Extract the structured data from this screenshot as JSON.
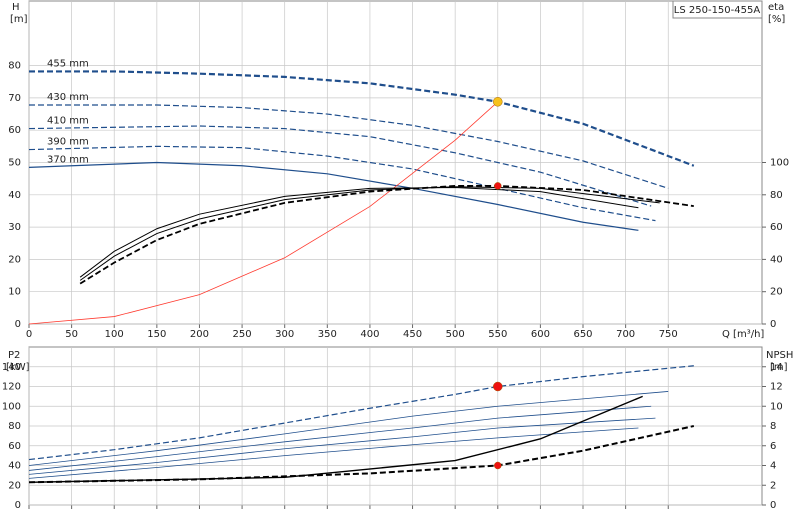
{
  "chart_data": [
    {
      "type": "line",
      "title": "LS 250-150-455A",
      "y_label": "H",
      "y_unit": "[m]",
      "y2_label": "eta",
      "y2_unit": "[%]",
      "x_label": "Q [m³/h]",
      "xlim": [
        0,
        860
      ],
      "xticks": [
        0,
        50,
        100,
        150,
        200,
        250,
        300,
        350,
        400,
        450,
        500,
        550,
        600,
        650,
        700,
        750
      ],
      "x_tick_labels": true,
      "ylim": [
        0,
        100
      ],
      "yticks": [
        0,
        10,
        20,
        30,
        40,
        50,
        60,
        70,
        80
      ],
      "y2lim": [
        0,
        200
      ],
      "y2ticks": [
        0,
        20,
        40,
        60,
        80,
        100
      ],
      "grid": true,
      "series": [
        {
          "name": "455 mm",
          "color": "#1f4e8c",
          "width": 2.2,
          "dash": true,
          "x": [
            0,
            100,
            200,
            300,
            400,
            500,
            550,
            650,
            700,
            780
          ],
          "values": [
            78.2,
            78.2,
            77.5,
            76.5,
            74.5,
            71,
            68.8,
            62,
            57,
            49
          ]
        },
        {
          "name": "430 mm",
          "color": "#1f4e8c",
          "width": 1.2,
          "dash": true,
          "x": [
            0,
            150,
            250,
            350,
            450,
            550,
            650,
            750
          ],
          "values": [
            67.8,
            67.8,
            67,
            65,
            61.5,
            56.5,
            50.5,
            42
          ]
        },
        {
          "name": "410 mm",
          "color": "#1f4e8c",
          "width": 1.2,
          "dash": true,
          "x": [
            0,
            200,
            300,
            400,
            500,
            600,
            730
          ],
          "values": [
            60.5,
            61.3,
            60.5,
            58,
            53,
            47,
            36.5
          ]
        },
        {
          "name": "390 mm",
          "color": "#1f4e8c",
          "width": 1.2,
          "dash": true,
          "x": [
            0,
            150,
            250,
            350,
            450,
            550,
            650,
            735
          ],
          "values": [
            54,
            55,
            54.6,
            52,
            48,
            42,
            36,
            32
          ]
        },
        {
          "name": "370 mm",
          "color": "#1f4e8c",
          "width": 1.2,
          "dash": false,
          "x": [
            0,
            150,
            250,
            350,
            450,
            550,
            650,
            715
          ],
          "values": [
            48.5,
            50,
            49,
            46.5,
            42,
            37,
            31.5,
            29
          ]
        },
        {
          "color": "#ff3b30",
          "width": 0.8,
          "dash": false,
          "x": [
            0,
            100,
            200,
            300,
            400,
            500,
            550
          ],
          "values": [
            0,
            2.3,
            9.1,
            20.5,
            36.4,
            56.9,
            68.8
          ]
        },
        {
          "color": "#000000",
          "width": 1.8,
          "dash": true,
          "axis": "y2",
          "x": [
            60,
            100,
            150,
            200,
            300,
            400,
            500,
            550,
            650,
            780
          ],
          "values": [
            25,
            38,
            52,
            62,
            75,
            82,
            85.5,
            85.5,
            83,
            73
          ]
        },
        {
          "color": "#000000",
          "width": 1,
          "dash": false,
          "axis": "y2",
          "x": [
            60,
            100,
            150,
            200,
            300,
            400,
            500,
            600,
            740
          ],
          "values": [
            27,
            42,
            56,
            65,
            77,
            83,
            85,
            84,
            75
          ]
        },
        {
          "color": "#000000",
          "width": 1,
          "dash": false,
          "axis": "y2",
          "x": [
            60,
            100,
            150,
            200,
            300,
            400,
            500,
            600,
            715
          ],
          "values": [
            29,
            45,
            59,
            68,
            79,
            84,
            84.5,
            82,
            72
          ]
        }
      ],
      "points": [
        {
          "x": 550,
          "y": 68.8,
          "color": "#f7c21c"
        },
        {
          "x": 550,
          "y": 85.5,
          "color": "#ee1111",
          "axis": "y2"
        }
      ]
    },
    {
      "type": "line",
      "y_label": "P2",
      "y_unit": "[kW]",
      "y2_label": "NPSH",
      "y2_unit": "[m]",
      "xlim": [
        0,
        860
      ],
      "xticks": [
        0,
        50,
        100,
        150,
        200,
        250,
        300,
        350,
        400,
        450,
        500,
        550,
        600,
        650,
        700,
        750
      ],
      "x_tick_labels": false,
      "ylim": [
        0,
        160
      ],
      "yticks": [
        0,
        20,
        40,
        60,
        80,
        100,
        120,
        140
      ],
      "y2lim": [
        0,
        16
      ],
      "y2ticks": [
        0,
        2,
        4,
        6,
        8,
        10,
        12,
        14
      ],
      "grid": true,
      "series": [
        {
          "color": "#1f4e8c",
          "width": 1.2,
          "dash": true,
          "x": [
            0,
            100,
            200,
            300,
            400,
            500,
            550,
            650,
            780
          ],
          "values": [
            46,
            56,
            68,
            83,
            98,
            112,
            120,
            130,
            141
          ]
        },
        {
          "color": "#1f4e8c",
          "width": 0.8,
          "dash": false,
          "x": [
            0,
            150,
            300,
            450,
            550,
            750
          ],
          "values": [
            40,
            55,
            72,
            90,
            100,
            115
          ]
        },
        {
          "color": "#1f4e8c",
          "width": 0.8,
          "dash": false,
          "x": [
            0,
            150,
            300,
            450,
            550,
            730
          ],
          "values": [
            35,
            49,
            64,
            78,
            88,
            100
          ]
        },
        {
          "color": "#1f4e8c",
          "width": 0.8,
          "dash": false,
          "x": [
            0,
            150,
            300,
            450,
            550,
            735
          ],
          "values": [
            31,
            43,
            57,
            69,
            78,
            88
          ]
        },
        {
          "color": "#1f4e8c",
          "width": 0.8,
          "dash": false,
          "x": [
            0,
            150,
            300,
            450,
            550,
            715
          ],
          "values": [
            27,
            38,
            50,
            61,
            68,
            78
          ]
        },
        {
          "color": "#000000",
          "width": 2,
          "dash": true,
          "axis": "y2",
          "x": [
            0,
            200,
            400,
            550,
            650,
            780
          ],
          "values": [
            2.3,
            2.6,
            3.2,
            4,
            5.5,
            8
          ]
        },
        {
          "color": "#000000",
          "width": 1.4,
          "dash": false,
          "axis": "y2",
          "x": [
            0,
            300,
            500,
            600,
            720
          ],
          "values": [
            2.3,
            2.8,
            4.5,
            6.7,
            11
          ]
        }
      ],
      "points": [
        {
          "x": 550,
          "y": 120,
          "color": "#ee1111"
        },
        {
          "x": 550,
          "y": 4,
          "color": "#ee1111",
          "axis": "y2"
        }
      ]
    }
  ]
}
